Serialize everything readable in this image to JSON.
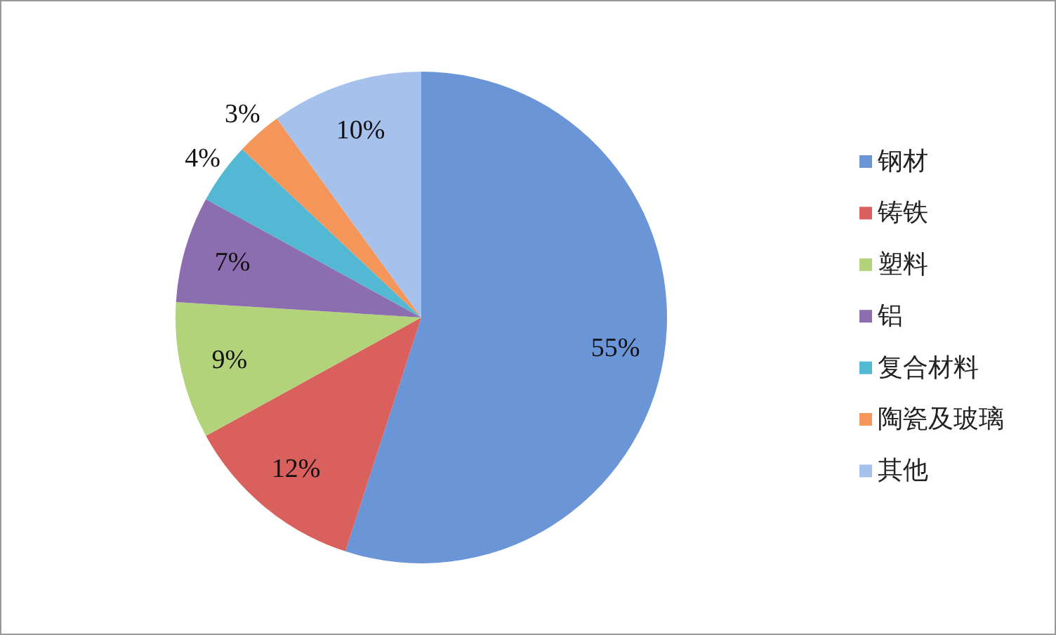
{
  "chart_data": {
    "type": "pie",
    "categories": [
      "钢材",
      "铸铁",
      "塑料",
      "铝",
      "复合材料",
      "陶瓷及玻璃",
      "其他"
    ],
    "values": [
      55,
      12,
      9,
      7,
      4,
      3,
      10
    ],
    "colors": [
      "#6a95d6",
      "#d9605c",
      "#b3d37a",
      "#8c6eb0",
      "#52b8d3",
      "#f4965a",
      "#a6c2ec"
    ],
    "value_labels": [
      "55%",
      "12%",
      "9%",
      "7%",
      "4%",
      "3%",
      "10%"
    ],
    "legend": "right"
  }
}
